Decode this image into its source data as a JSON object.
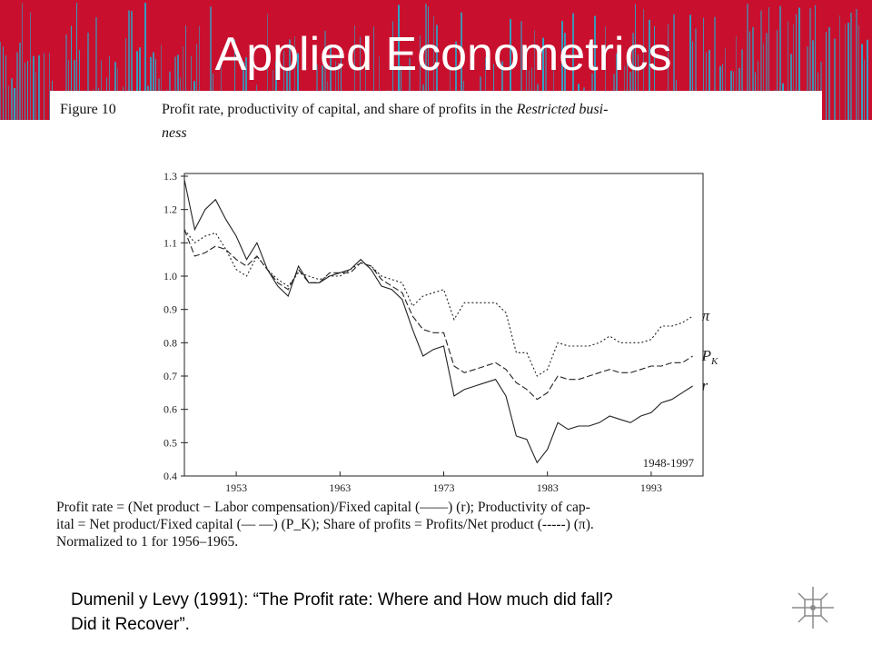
{
  "slide": {
    "title": "Applied Econometrics",
    "citation_line1": "Dumenil y Levy (1991): “The Profit rate: Where and How much did fall?",
    "citation_line2": "Did it Recover”."
  },
  "figure": {
    "number": "Figure 10",
    "caption": "Profit rate, productivity of capital, and share of profits in the Restricted business",
    "caption_parts": [
      "Profit rate, productivity of capital, and share of profits in the ",
      "Restricted busi-",
      "ness"
    ],
    "footnote_lines": [
      "Profit rate = (Net product − Labor compensation)/Fixed capital (——) (r); Productivity of cap-",
      "ital = Net product/Fixed capital (— —) (P_K); Share of profits = Profits/Net product (-----) (π).",
      "Normalized to 1 for 1956–1965."
    ]
  },
  "colors": {
    "banner": "#c8102e",
    "stripes": "#2aa7c9",
    "line": "#222222"
  },
  "nav_icon": "navigation-cross-icon",
  "chart_data": {
    "type": "line",
    "annotation": "1948-1997",
    "xlim": [
      1948,
      1998
    ],
    "ylim": [
      0.4,
      1.3
    ],
    "x_ticks": [
      1953,
      1963,
      1973,
      1983,
      1993
    ],
    "y_ticks": [
      0.4,
      0.5,
      0.6,
      0.7,
      0.8,
      0.9,
      1.0,
      1.1,
      1.2,
      1.3
    ],
    "grid": false,
    "x": [
      1948,
      1949,
      1950,
      1951,
      1952,
      1953,
      1954,
      1955,
      1956,
      1957,
      1958,
      1959,
      1960,
      1961,
      1962,
      1963,
      1964,
      1965,
      1966,
      1967,
      1968,
      1969,
      1970,
      1971,
      1972,
      1973,
      1974,
      1975,
      1976,
      1977,
      1978,
      1979,
      1980,
      1981,
      1982,
      1983,
      1984,
      1985,
      1986,
      1987,
      1988,
      1989,
      1990,
      1991,
      1992,
      1993,
      1994,
      1995,
      1996,
      1997
    ],
    "series": [
      {
        "name": "π",
        "style": "dotted",
        "values": [
          1.14,
          1.1,
          1.12,
          1.13,
          1.08,
          1.02,
          1.0,
          1.06,
          1.02,
          0.99,
          0.97,
          1.01,
          1.0,
          0.99,
          1.0,
          1.0,
          1.02,
          1.04,
          1.03,
          1.0,
          0.99,
          0.98,
          0.91,
          0.94,
          0.95,
          0.96,
          0.87,
          0.92,
          0.92,
          0.92,
          0.92,
          0.89,
          0.77,
          0.77,
          0.7,
          0.72,
          0.8,
          0.79,
          0.79,
          0.79,
          0.8,
          0.82,
          0.8,
          0.8,
          0.8,
          0.81,
          0.85,
          0.85,
          0.86,
          0.88
        ]
      },
      {
        "name": "P_K",
        "style": "dashed",
        "values": [
          1.14,
          1.06,
          1.07,
          1.09,
          1.08,
          1.05,
          1.03,
          1.06,
          1.02,
          0.98,
          0.96,
          1.02,
          0.98,
          0.98,
          1.01,
          1.01,
          1.01,
          1.04,
          1.03,
          0.99,
          0.97,
          0.95,
          0.88,
          0.84,
          0.83,
          0.83,
          0.73,
          0.71,
          0.72,
          0.73,
          0.74,
          0.72,
          0.68,
          0.66,
          0.63,
          0.65,
          0.7,
          0.69,
          0.69,
          0.7,
          0.71,
          0.72,
          0.71,
          0.71,
          0.72,
          0.73,
          0.73,
          0.74,
          0.74,
          0.76
        ]
      },
      {
        "name": "r",
        "style": "solid",
        "values": [
          1.29,
          1.14,
          1.2,
          1.23,
          1.17,
          1.12,
          1.05,
          1.1,
          1.02,
          0.97,
          0.94,
          1.03,
          0.98,
          0.98,
          1.0,
          1.01,
          1.02,
          1.05,
          1.02,
          0.97,
          0.96,
          0.93,
          0.84,
          0.76,
          0.78,
          0.79,
          0.64,
          0.66,
          0.67,
          0.68,
          0.69,
          0.64,
          0.52,
          0.51,
          0.44,
          0.48,
          0.56,
          0.54,
          0.55,
          0.55,
          0.56,
          0.58,
          0.57,
          0.56,
          0.58,
          0.59,
          0.62,
          0.63,
          0.65,
          0.67
        ]
      }
    ],
    "series_labels": [
      "π",
      "P_K",
      "r"
    ]
  }
}
